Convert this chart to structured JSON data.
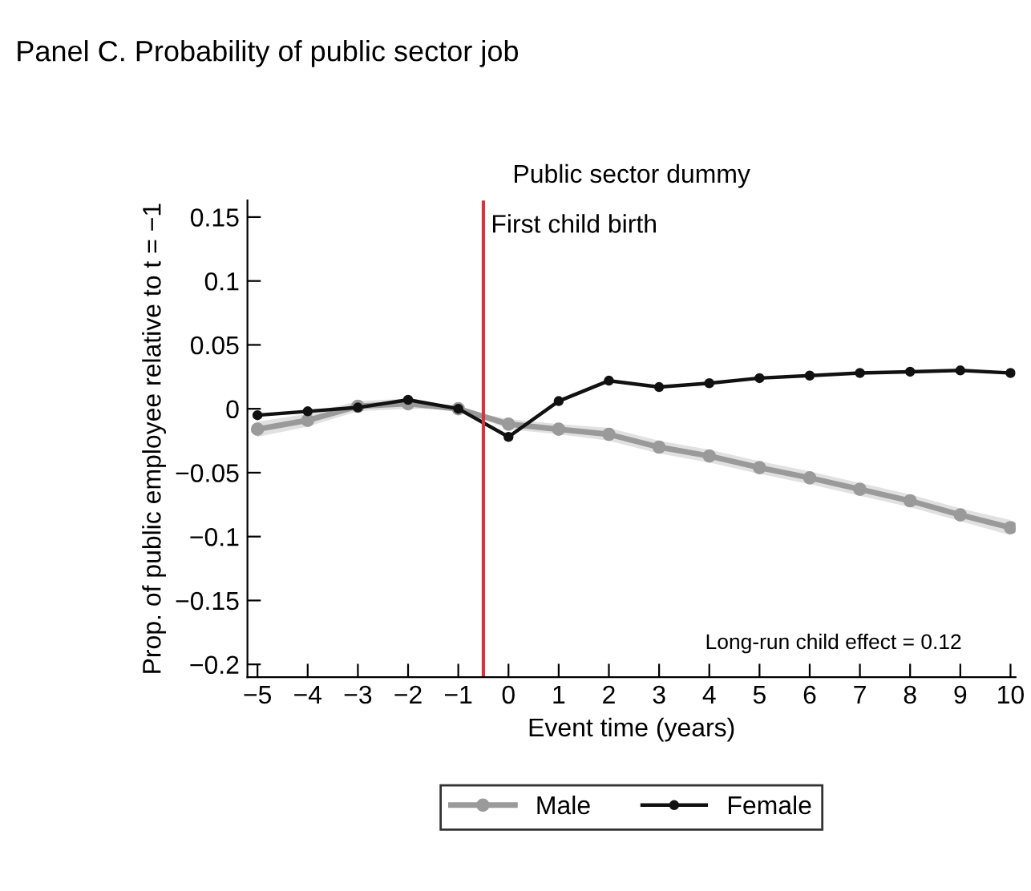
{
  "chart_data": {
    "type": "line",
    "title": "Panel C. Probability of public sector job",
    "subtitle": "Public sector dummy",
    "xlabel": "Event time (years)",
    "ylabel": "Prop. of public employee relative to t = −1",
    "x": [
      -5,
      -4,
      -3,
      -2,
      -1,
      0,
      1,
      2,
      3,
      4,
      5,
      6,
      7,
      8,
      9,
      10
    ],
    "series": [
      {
        "name": "Male",
        "color": "#9a9a9a",
        "values": [
          -0.016,
          -0.009,
          0.002,
          0.004,
          0,
          -0.012,
          -0.016,
          -0.02,
          -0.03,
          -0.037,
          -0.046,
          -0.054,
          -0.063,
          -0.072,
          -0.083,
          -0.093
        ],
        "lower": [
          -0.022,
          -0.014,
          -0.002,
          0.0,
          0,
          -0.016,
          -0.02,
          -0.025,
          -0.035,
          -0.042,
          -0.051,
          -0.059,
          -0.068,
          -0.077,
          -0.088,
          -0.099
        ],
        "upper": [
          -0.01,
          -0.004,
          0.006,
          0.008,
          0,
          -0.008,
          -0.012,
          -0.015,
          -0.025,
          -0.032,
          -0.041,
          -0.049,
          -0.058,
          -0.067,
          -0.078,
          -0.087
        ]
      },
      {
        "name": "Female",
        "color": "#111111",
        "values": [
          -0.005,
          -0.002,
          0.001,
          0.007,
          0,
          -0.022,
          0.006,
          0.022,
          0.017,
          0.02,
          0.024,
          0.026,
          0.028,
          0.029,
          0.03,
          0.028
        ]
      }
    ],
    "xlim": [
      -5.2,
      10.1
    ],
    "ylim": [
      -0.21,
      0.163
    ],
    "xticks": [
      {
        "value": -5,
        "label": "−5"
      },
      {
        "value": -4,
        "label": "−4"
      },
      {
        "value": -3,
        "label": "−3"
      },
      {
        "value": -2,
        "label": "−2"
      },
      {
        "value": -1,
        "label": "−1"
      },
      0,
      1,
      2,
      3,
      4,
      5,
      6,
      7,
      8,
      9,
      10
    ],
    "yticks": [
      {
        "value": -0.2,
        "label": "−0.2"
      },
      {
        "value": -0.15,
        "label": "−0.15"
      },
      {
        "value": -0.1,
        "label": "−0.1"
      },
      {
        "value": -0.05,
        "label": "−0.05"
      },
      0,
      0.05,
      0.1,
      0.15
    ],
    "ref_lines": [
      {
        "axis": "x",
        "value": -0.5,
        "label": "First child birth",
        "color": "#d8333f"
      }
    ],
    "annotations": [
      "Long-run child effect = 0.12"
    ],
    "marker": "circle",
    "line_style": "solid",
    "grid": false,
    "legend": "bottom"
  }
}
